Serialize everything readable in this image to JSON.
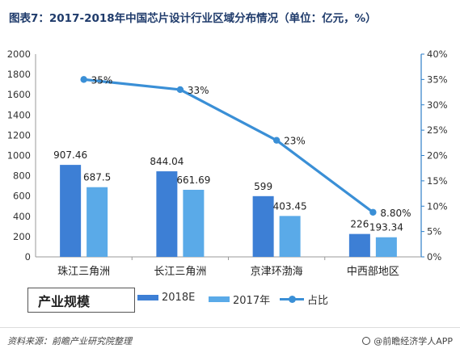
{
  "title": "图表7：2017-2018年中国芯片设计行业区域分布情况（单位：亿元，%）",
  "legend_title": "产业规模",
  "source": "资料来源：前瞻产业研究院整理",
  "credit": "@前瞻经济学人APP",
  "colors": {
    "s2018": "#3d7fd5",
    "s2017": "#5aaae8",
    "line": "#3a8fd6",
    "axis_right": "#2f7fc8"
  },
  "chart_data": {
    "type": "bar",
    "categories": [
      "珠江三角洲",
      "长江三角洲",
      "京津环渤海",
      "中西部地区"
    ],
    "series": [
      {
        "name": "2018E",
        "type": "bar",
        "axis": "left",
        "values": [
          907.46,
          844.04,
          599,
          226
        ],
        "labels": [
          "907.46",
          "844.04",
          "599",
          "226"
        ]
      },
      {
        "name": "2017年",
        "type": "bar",
        "axis": "left",
        "values": [
          687.5,
          661.69,
          403.45,
          193.34
        ],
        "labels": [
          "687.5",
          "661.69",
          "403.45",
          "193.34"
        ]
      },
      {
        "name": "占比",
        "type": "line",
        "axis": "right",
        "values": [
          35,
          33,
          23,
          8.8
        ],
        "labels": [
          "35%",
          "33%",
          "23%",
          "8.80%"
        ]
      }
    ],
    "ylim": [
      0,
      2000
    ],
    "yticks": [
      0,
      200,
      400,
      600,
      800,
      1000,
      1200,
      1400,
      1600,
      1800,
      2000
    ],
    "y2lim": [
      0,
      40
    ],
    "y2ticks": [
      "0%",
      "5%",
      "10%",
      "15%",
      "20%",
      "25%",
      "30%",
      "35%",
      "40%"
    ],
    "xlabel": "",
    "ylabel": "",
    "grid": false,
    "legend_position": "bottom"
  }
}
